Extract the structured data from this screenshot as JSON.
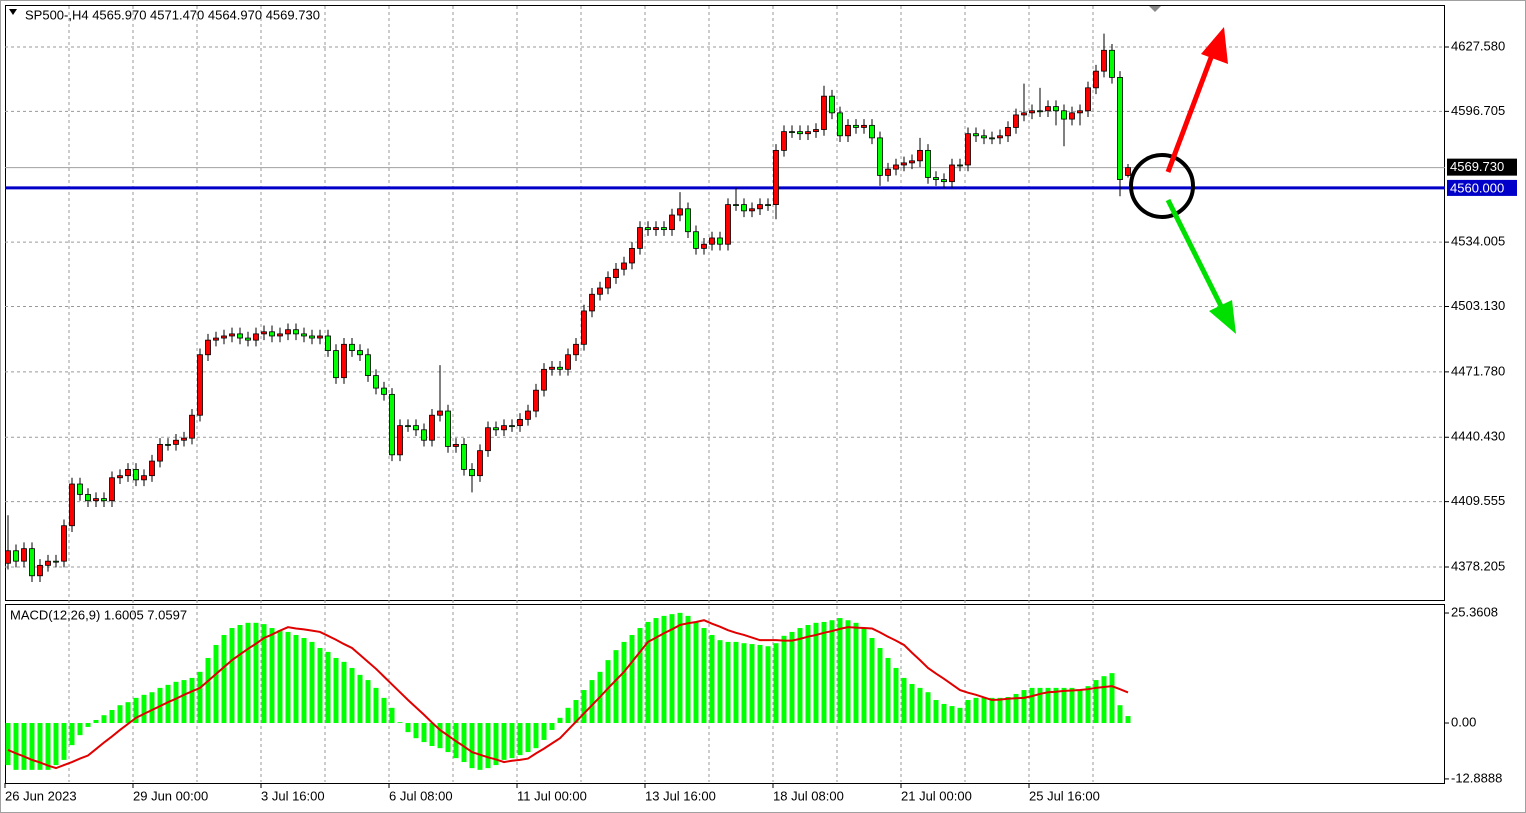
{
  "chart_data": [
    {
      "type": "candlestick",
      "title": "SP500-,H4 4565.970 4571.470 4564.970 4569.730",
      "colors": {
        "up": "#ff0000",
        "down": "#00ff00",
        "wick": "#000000"
      },
      "ylim": [
        4362.38,
        4647.72
      ],
      "yticks": [
        {
          "value": 4627.58,
          "label": "4627.580"
        },
        4596.705,
        4534.005,
        {
          "value": 4503.13,
          "label": "4503.130"
        },
        {
          "value": 4471.78,
          "label": "4471.780"
        },
        {
          "value": 4440.43,
          "label": "4440.430"
        },
        4409.555,
        4378.205
      ],
      "grid": true,
      "levels": [
        {
          "value": 4560,
          "label": "4560.000",
          "color": "#0000c8"
        }
      ],
      "last_price": {
        "value": 4569.73,
        "label": "4569.730"
      },
      "categories": [
        "26 Jun 2023",
        null,
        null,
        null,
        null,
        null,
        null,
        null,
        null,
        null,
        null,
        null,
        null,
        null,
        null,
        null,
        "29 Jun 00:00",
        null,
        null,
        null,
        null,
        null,
        null,
        null,
        null,
        null,
        null,
        null,
        null,
        null,
        null,
        null,
        "3 Jul 16:00",
        null,
        null,
        null,
        null,
        null,
        null,
        null,
        null,
        null,
        null,
        null,
        null,
        null,
        null,
        null,
        "6 Jul 08:00",
        null,
        null,
        null,
        null,
        null,
        null,
        null,
        null,
        null,
        null,
        null,
        null,
        null,
        null,
        null,
        "11 Jul 00:00",
        null,
        null,
        null,
        null,
        null,
        null,
        null,
        null,
        null,
        null,
        null,
        null,
        null,
        null,
        null,
        "13 Jul 16:00",
        null,
        null,
        null,
        null,
        null,
        null,
        null,
        null,
        null,
        null,
        null,
        null,
        null,
        null,
        null,
        "18 Jul 08:00",
        null,
        null,
        null,
        null,
        null,
        null,
        null,
        null,
        null,
        null,
        null,
        null,
        null,
        null,
        null,
        "21 Jul 00:00",
        null,
        null,
        null,
        null,
        null,
        null,
        null,
        null,
        null,
        null,
        null,
        null,
        null,
        null,
        null,
        "25 Jul 16:00",
        null,
        null,
        null,
        null,
        null,
        null,
        null,
        null,
        null,
        null,
        null,
        null
      ],
      "ohlc": [
        [
          4380,
          4403,
          4377,
          4386
        ],
        [
          4386,
          4389,
          4378,
          4381
        ],
        [
          4381,
          4390,
          4378,
          4387
        ],
        [
          4387,
          4390,
          4371,
          4374
        ],
        [
          4374,
          4382,
          4371,
          4379
        ],
        [
          4379,
          4384,
          4376,
          4381
        ],
        [
          4381,
          4384,
          4378,
          4381
        ],
        [
          4381,
          4401,
          4378,
          4398
        ],
        [
          4398,
          4421,
          4395,
          4418
        ],
        [
          4418,
          4421,
          4410,
          4413
        ],
        [
          4413,
          4416,
          4407,
          4410
        ],
        [
          4410,
          4414,
          4407,
          4411
        ],
        [
          4411,
          4414,
          4407,
          4410
        ],
        [
          4410,
          4424,
          4407,
          4421
        ],
        [
          4421,
          4425,
          4418,
          4422
        ],
        [
          4422,
          4428,
          4419,
          4425
        ],
        [
          4425,
          4428,
          4417,
          4420
        ],
        [
          4420,
          4425,
          4417,
          4422
        ],
        [
          4422,
          4432,
          4419,
          4429
        ],
        [
          4429,
          4440,
          4426,
          4437
        ],
        [
          4437,
          4440,
          4434,
          4437
        ],
        [
          4437,
          4442,
          4434,
          4439
        ],
        [
          4439,
          4443,
          4436,
          4440
        ],
        [
          4440,
          4454,
          4437,
          4451
        ],
        [
          4451,
          4483,
          4448,
          4480
        ],
        [
          4480,
          4490,
          4477,
          4487
        ],
        [
          4487,
          4491,
          4484,
          4488
        ],
        [
          4488,
          4492,
          4485,
          4489
        ],
        [
          4489,
          4493,
          4486,
          4490
        ],
        [
          4490,
          4493,
          4485,
          4488
        ],
        [
          4488,
          4491,
          4484,
          4487
        ],
        [
          4487,
          4493,
          4484,
          4490
        ],
        [
          4490,
          4494,
          4487,
          4491
        ],
        [
          4491,
          4494,
          4486,
          4489
        ],
        [
          4489,
          4493,
          4486,
          4490
        ],
        [
          4490,
          4495,
          4487,
          4492
        ],
        [
          4492,
          4495,
          4487,
          4490
        ],
        [
          4490,
          4493,
          4486,
          4489
        ],
        [
          4489,
          4492,
          4485,
          4488
        ],
        [
          4488,
          4492,
          4485,
          4489
        ],
        [
          4489,
          4492,
          4479,
          4482
        ],
        [
          4482,
          4485,
          4466,
          4469
        ],
        [
          4469,
          4488,
          4466,
          4485
        ],
        [
          4485,
          4488,
          4479,
          4482
        ],
        [
          4482,
          4485,
          4477,
          4480
        ],
        [
          4480,
          4483,
          4467,
          4470
        ],
        [
          4470,
          4473,
          4461,
          4464
        ],
        [
          4464,
          4467,
          4458,
          4461
        ],
        [
          4461,
          4464,
          4429,
          4432
        ],
        [
          4432,
          4449,
          4429,
          4446
        ],
        [
          4446,
          4449,
          4443,
          4446
        ],
        [
          4446,
          4449,
          4441,
          4444
        ],
        [
          4444,
          4447,
          4436,
          4439
        ],
        [
          4439,
          4454,
          4436,
          4451
        ],
        [
          4451,
          4475,
          4448,
          4453
        ],
        [
          4453,
          4456,
          4433,
          4436
        ],
        [
          4436,
          4440,
          4433,
          4437
        ],
        [
          4437,
          4440,
          4422,
          4425
        ],
        [
          4425,
          4428,
          4414,
          4422
        ],
        [
          4422,
          4437,
          4419,
          4434
        ],
        [
          4434,
          4448,
          4431,
          4445
        ],
        [
          4445,
          4448,
          4441,
          4444
        ],
        [
          4444,
          4449,
          4441,
          4446
        ],
        [
          4446,
          4449,
          4443,
          4446
        ],
        [
          4446,
          4452,
          4443,
          4449
        ],
        [
          4449,
          4456,
          4446,
          4453
        ],
        [
          4453,
          4466,
          4450,
          4463
        ],
        [
          4463,
          4476,
          4460,
          4473
        ],
        [
          4473,
          4477,
          4470,
          4474
        ],
        [
          4474,
          4477,
          4470,
          4473
        ],
        [
          4473,
          4483,
          4470,
          4480
        ],
        [
          4480,
          4488,
          4477,
          4485
        ],
        [
          4485,
          4504,
          4482,
          4501
        ],
        [
          4501,
          4512,
          4498,
          4509
        ],
        [
          4509,
          4515,
          4506,
          4512
        ],
        [
          4512,
          4520,
          4509,
          4517
        ],
        [
          4517,
          4524,
          4514,
          4521
        ],
        [
          4521,
          4527,
          4518,
          4524
        ],
        [
          4524,
          4534,
          4521,
          4531
        ],
        [
          4531,
          4544,
          4528,
          4541
        ],
        [
          4541,
          4544,
          4537,
          4540
        ],
        [
          4540,
          4544,
          4537,
          4541
        ],
        [
          4541,
          4544,
          4537,
          4540
        ],
        [
          4540,
          4550,
          4537,
          4547
        ],
        [
          4547,
          4558,
          4544,
          4550
        ],
        [
          4550,
          4553,
          4536,
          4539
        ],
        [
          4539,
          4542,
          4528,
          4531
        ],
        [
          4531,
          4536,
          4528,
          4533
        ],
        [
          4533,
          4539,
          4530,
          4536
        ],
        [
          4536,
          4539,
          4530,
          4533
        ],
        [
          4533,
          4555,
          4530,
          4552
        ],
        [
          4552,
          4560,
          4549,
          4552
        ],
        [
          4552,
          4555,
          4546,
          4549
        ],
        [
          4549,
          4553,
          4546,
          4550
        ],
        [
          4550,
          4555,
          4547,
          4552
        ],
        [
          4552,
          4555,
          4549,
          4552
        ],
        [
          4552,
          4581,
          4545,
          4578
        ],
        [
          4578,
          4590,
          4575,
          4587
        ],
        [
          4587,
          4590,
          4584,
          4587
        ],
        [
          4587,
          4590,
          4583,
          4586
        ],
        [
          4586,
          4590,
          4583,
          4587
        ],
        [
          4587,
          4591,
          4584,
          4588
        ],
        [
          4588,
          4609,
          4585,
          4604
        ],
        [
          4604,
          4607,
          4593,
          4596
        ],
        [
          4596,
          4599,
          4582,
          4585
        ],
        [
          4585,
          4593,
          4582,
          4590
        ],
        [
          4590,
          4593,
          4586,
          4589
        ],
        [
          4589,
          4593,
          4586,
          4590
        ],
        [
          4590,
          4593,
          4581,
          4584
        ],
        [
          4584,
          4587,
          4561,
          4566
        ],
        [
          4566,
          4572,
          4563,
          4569
        ],
        [
          4569,
          4574,
          4566,
          4571
        ],
        [
          4571,
          4575,
          4568,
          4572
        ],
        [
          4572,
          4576,
          4569,
          4573
        ],
        [
          4573,
          4584,
          4570,
          4578
        ],
        [
          4578,
          4581,
          4562,
          4565
        ],
        [
          4565,
          4568,
          4561,
          4564
        ],
        [
          4564,
          4567,
          4560,
          4563
        ],
        [
          4563,
          4574,
          4560,
          4571
        ],
        [
          4571,
          4574,
          4568,
          4571
        ],
        [
          4571,
          4589,
          4568,
          4586
        ],
        [
          4586,
          4589,
          4582,
          4585
        ],
        [
          4585,
          4588,
          4581,
          4584
        ],
        [
          4584,
          4587,
          4581,
          4584
        ],
        [
          4584,
          4588,
          4581,
          4585
        ],
        [
          4585,
          4592,
          4582,
          4589
        ],
        [
          4589,
          4598,
          4586,
          4595
        ],
        [
          4595,
          4610,
          4592,
          4596
        ],
        [
          4596,
          4600,
          4593,
          4597
        ],
        [
          4597,
          4608,
          4594,
          4597
        ],
        [
          4597,
          4602,
          4594,
          4599
        ],
        [
          4599,
          4602,
          4590,
          4597
        ],
        [
          4597,
          4600,
          4580,
          4593
        ],
        [
          4593,
          4599,
          4590,
          4596
        ],
        [
          4596,
          4600,
          4590,
          4597
        ],
        [
          4597,
          4611,
          4594,
          4608
        ],
        [
          4608,
          4619,
          4605,
          4616
        ],
        [
          4616,
          4634,
          4613,
          4626
        ],
        [
          4626,
          4629,
          4610,
          4613
        ],
        [
          4613,
          4616,
          4556,
          4564
        ],
        [
          4565.97,
          4571.47,
          4564.97,
          4569.73
        ]
      ]
    },
    {
      "type": "macd",
      "title": "MACD(12,26,9) 1.6005 7.0597",
      "ylim": [
        -13.83,
        27.44
      ],
      "yticks": [
        25.3608,
        {
          "value": 0,
          "label": "0.00"
        },
        -12.8888
      ],
      "histogram_color": "#00ff00",
      "signal_color": "#e00000",
      "histogram": [
        -9.7,
        -10.8,
        -10.8,
        -10.8,
        -10.8,
        -10.8,
        -9.7,
        -8.5,
        -5.1,
        -2.8,
        -0.9,
        0.7,
        1.8,
        3.0,
        4.1,
        4.8,
        5.8,
        6.5,
        7.1,
        8.1,
        8.8,
        9.5,
        9.9,
        10.4,
        11.8,
        15.0,
        18.0,
        20.3,
        21.9,
        22.6,
        23.1,
        23.1,
        22.8,
        21.9,
        21.4,
        21.0,
        20.3,
        19.6,
        18.7,
        17.3,
        16.4,
        15.0,
        14.1,
        12.7,
        11.1,
        9.9,
        8.1,
        5.8,
        3.5,
        0.2,
        -2.1,
        -3.5,
        -4.4,
        -5.3,
        -5.8,
        -6.7,
        -8.1,
        -9.0,
        -10.4,
        -10.8,
        -10.4,
        -9.7,
        -8.5,
        -8.1,
        -7.4,
        -6.7,
        -5.8,
        -3.9,
        -1.6,
        1.2,
        3.5,
        5.3,
        7.6,
        9.9,
        11.8,
        14.5,
        16.8,
        18.7,
        20.3,
        21.9,
        23.3,
        24.2,
        24.7,
        25.1,
        25.4,
        24.7,
        23.3,
        21.9,
        20.3,
        19.1,
        18.7,
        18.7,
        18.4,
        18.2,
        18.0,
        17.7,
        18.4,
        20.1,
        21.0,
        21.9,
        22.6,
        23.1,
        23.3,
        23.7,
        24.2,
        23.7,
        23.1,
        21.9,
        19.6,
        17.3,
        15.0,
        12.7,
        10.4,
        9.0,
        8.1,
        7.1,
        5.3,
        4.4,
        3.9,
        3.5,
        5.3,
        5.8,
        5.8,
        5.8,
        5.8,
        6.0,
        6.7,
        7.6,
        8.1,
        8.1,
        8.1,
        8.1,
        8.1,
        8.1,
        7.6,
        8.5,
        9.9,
        10.8,
        11.5,
        4.1,
        1.6005
      ],
      "signal": [
        -6.2,
        -7.0,
        -7.7,
        -8.5,
        -9.1,
        -9.8,
        -10.4,
        -9.7,
        -9.0,
        -8.2,
        -7.5,
        -6.0,
        -4.5,
        -3.1,
        -1.6,
        -0.2,
        1.2,
        2.1,
        3.0,
        3.9,
        4.8,
        5.6,
        6.5,
        7.3,
        8.1,
        9.7,
        11.3,
        12.9,
        14.5,
        15.8,
        17.1,
        18.3,
        19.6,
        20.4,
        21.3,
        22.1,
        21.8,
        21.6,
        21.3,
        21.0,
        20.1,
        19.2,
        18.2,
        17.3,
        15.7,
        14.1,
        12.5,
        10.7,
        8.9,
        7.1,
        5.3,
        3.6,
        1.9,
        0.1,
        -1.6,
        -2.9,
        -4.2,
        -5.4,
        -6.7,
        -7.3,
        -7.9,
        -8.4,
        -9.0,
        -8.7,
        -8.5,
        -8.2,
        -7.0,
        -5.9,
        -4.7,
        -3.5,
        -1.6,
        0.3,
        2.2,
        4.1,
        6.0,
        8.0,
        9.9,
        11.8,
        14.1,
        16.4,
        18.7,
        19.7,
        20.7,
        21.6,
        22.6,
        23.0,
        23.3,
        23.7,
        22.9,
        22.2,
        21.4,
        20.8,
        20.3,
        19.7,
        19.1,
        19.1,
        19.1,
        19.0,
        19.0,
        19.4,
        19.9,
        20.3,
        20.8,
        21.2,
        21.7,
        22.1,
        22.0,
        21.9,
        21.8,
        20.9,
        19.9,
        19.0,
        18.0,
        16.2,
        14.5,
        12.7,
        11.4,
        10.2,
        8.9,
        7.6,
        7.0,
        6.5,
        5.9,
        5.3,
        5.4,
        5.6,
        5.7,
        5.8,
        6.2,
        6.7,
        7.1,
        7.2,
        7.4,
        7.5,
        7.6,
        7.8,
        8.1,
        8.3,
        8.5,
        7.8,
        7.0597
      ]
    }
  ]
}
